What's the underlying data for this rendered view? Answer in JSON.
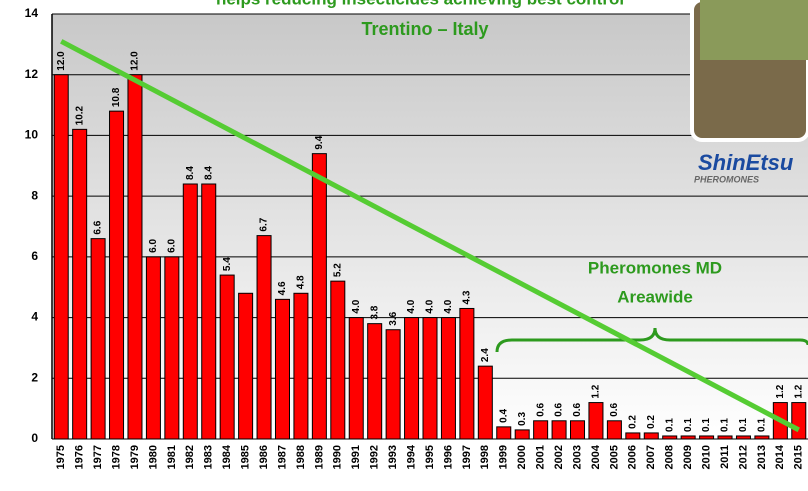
{
  "chart_data": {
    "type": "bar",
    "title": "helps reducing insecticides achieving best control",
    "subtitle": "Trentino – Italy",
    "annotation": [
      "Pheromones MD",
      "Areawide"
    ],
    "logo": {
      "name": "ShinEtsu",
      "tagline": "PHEROMONES"
    },
    "categories": [
      "1975",
      "1976",
      "1977",
      "1978",
      "1979",
      "1980",
      "1981",
      "1982",
      "1983",
      "1984",
      "1985",
      "1986",
      "1987",
      "1988",
      "1989",
      "1990",
      "1991",
      "1992",
      "1993",
      "1994",
      "1995",
      "1996",
      "1997",
      "1998",
      "1999",
      "2000",
      "2001",
      "2002",
      "2003",
      "2004",
      "2005",
      "2006",
      "2007",
      "2008",
      "2009",
      "2010",
      "2011",
      "2012",
      "2013",
      "2014",
      "2015"
    ],
    "values": [
      12.0,
      10.2,
      6.6,
      10.8,
      12.0,
      6.0,
      6.0,
      8.4,
      8.4,
      5.4,
      4.8,
      6.7,
      4.6,
      4.8,
      9.4,
      5.2,
      4.0,
      3.8,
      3.6,
      4.0,
      4.0,
      4.0,
      4.3,
      2.4,
      0.4,
      0.3,
      0.6,
      0.6,
      0.6,
      1.2,
      0.6,
      0.2,
      0.2,
      0.1,
      0.1,
      0.1,
      0.1,
      0.1,
      0.1,
      1.2,
      1.2
    ],
    "value_labels": [
      "12.0",
      "10.2",
      "6.6",
      "10.8",
      "12.0",
      "6.0",
      "6.0",
      "8.4",
      "8.4",
      "5.4",
      null,
      "6.7",
      "4.6",
      "4.8",
      "9.4",
      "5.2",
      "4.0",
      "3.8",
      "3.6",
      "4.0",
      "4.0",
      "4.0",
      "4.3",
      "2.4",
      "0.4",
      "0.3",
      "0.6",
      "0.6",
      "0.6",
      "1.2",
      "0.6",
      "0.2",
      "0.2",
      "0.1",
      "0.1",
      "0.1",
      "0.1",
      "0.1",
      "0.1",
      "1.2",
      "1.2"
    ],
    "color": "#ff0000",
    "trend": {
      "color": "#55cc33",
      "values": [
        13.1,
        0.3
      ]
    },
    "ylim": [
      0,
      14
    ],
    "yticks": [
      0,
      2,
      4,
      6,
      8,
      10,
      12,
      14
    ],
    "grid": true
  }
}
